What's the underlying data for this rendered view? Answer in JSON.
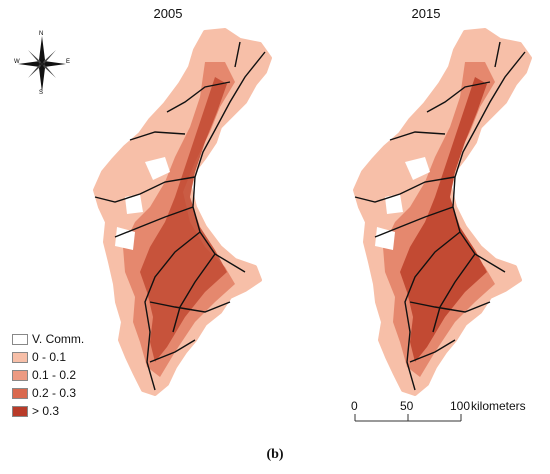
{
  "panels": [
    {
      "title": "2005"
    },
    {
      "title": "2015"
    }
  ],
  "compass": {
    "n": "N",
    "s": "S",
    "e": "E",
    "w": "W"
  },
  "legend": {
    "items": [
      {
        "label": "V. Comm.",
        "color": "#ffffff"
      },
      {
        "label": "0 - 0.1",
        "color": "#f7bfa8"
      },
      {
        "label": "0.1 - 0.2",
        "color": "#ec9a82"
      },
      {
        "label": "0.2 - 0.3",
        "color": "#d9694f"
      },
      {
        "label": "> 0.3",
        "color": "#b83b29"
      }
    ]
  },
  "scalebar": {
    "ticks": [
      "0",
      "50",
      "100"
    ],
    "unit": "kilometers"
  },
  "caption": "(b)",
  "colors": {
    "road": "#111111",
    "base": "#f7bfa8",
    "mid": "#e5886e",
    "dense": "#c24a33"
  }
}
